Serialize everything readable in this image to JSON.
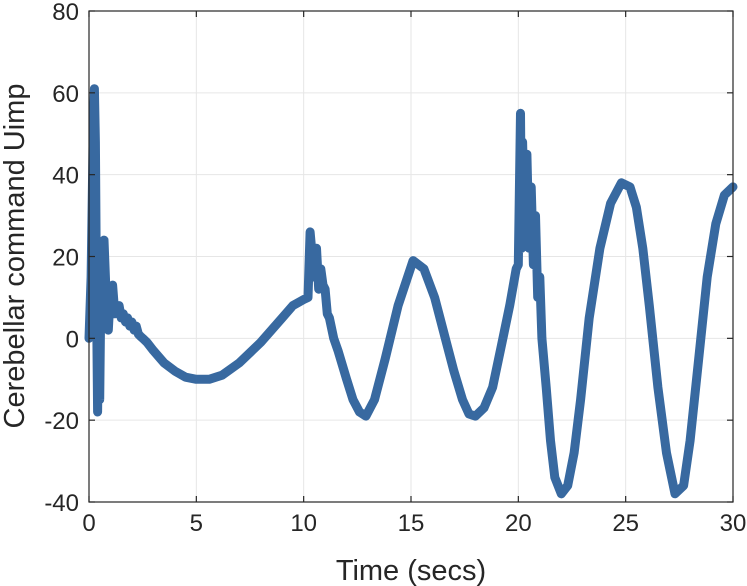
{
  "chart_data": {
    "type": "line",
    "title": "",
    "xlabel": "Time (secs)",
    "ylabel": "Cerebellar command Uimp",
    "xlim": [
      0,
      30
    ],
    "ylim": [
      -40,
      80
    ],
    "xticks": [
      0,
      5,
      10,
      15,
      20,
      25,
      30
    ],
    "yticks": [
      -40,
      -20,
      0,
      20,
      40,
      60,
      80
    ],
    "grid": true,
    "legend": "none",
    "line_color": "#3869a0",
    "series": [
      {
        "x": [
          0,
          0.1,
          0.2,
          0.25,
          0.3,
          0.35,
          0.4,
          0.45,
          0.5,
          0.55,
          0.6,
          0.7,
          0.8,
          0.9,
          1.0,
          1.1,
          1.2,
          1.3,
          1.4,
          1.5,
          1.6,
          1.7,
          1.8,
          1.9,
          2.0,
          2.1,
          2.2,
          2.3,
          2.4,
          2.5,
          2.7,
          3.0,
          3.5,
          4.0,
          4.5,
          5.0,
          5.6,
          6.2,
          7.0,
          8.0,
          9.0,
          9.5,
          10.0,
          10.2,
          10.3,
          10.4,
          10.5,
          10.6,
          10.7,
          10.8,
          10.9,
          11.0,
          11.1,
          11.2,
          11.4,
          11.6,
          12.0,
          12.3,
          12.6,
          12.9,
          13.3,
          13.8,
          14.4,
          15.1,
          15.6,
          16.1,
          16.6,
          17.0,
          17.4,
          17.7,
          18.0,
          18.4,
          18.8,
          19.2,
          19.6,
          19.9,
          20.0,
          20.1,
          20.15,
          20.2,
          20.3,
          20.4,
          20.5,
          20.6,
          20.7,
          20.8,
          20.9,
          21.0,
          21.1,
          21.3,
          21.5,
          21.7,
          22.0,
          22.3,
          22.6,
          22.9,
          23.3,
          23.8,
          24.3,
          24.8,
          25.2,
          25.5,
          25.8,
          26.1,
          26.5,
          26.9,
          27.3,
          27.7,
          28.0,
          28.4,
          28.8,
          29.2,
          29.6,
          30.0
        ],
        "y": [
          0,
          15,
          52,
          61,
          48,
          10,
          -18,
          5,
          -15,
          10,
          5,
          24,
          10,
          2,
          12,
          13,
          6,
          7,
          8,
          5,
          6,
          4,
          5,
          3,
          4,
          2,
          3,
          1,
          0.5,
          0,
          -1,
          -3,
          -6,
          -8,
          -9.5,
          -10,
          -10,
          -9,
          -6,
          -1,
          5,
          8,
          9.5,
          10,
          26,
          20,
          15,
          22,
          12,
          17,
          13,
          12,
          6,
          5,
          0,
          -3,
          -10,
          -15,
          -18,
          -19,
          -15,
          -5,
          8,
          19,
          17,
          10,
          0,
          -8,
          -15,
          -18.5,
          -19,
          -17,
          -12,
          -2,
          8,
          17,
          18,
          55,
          22,
          48,
          25,
          45,
          22,
          37,
          18,
          30,
          10,
          15,
          0,
          -12,
          -25,
          -34,
          -38,
          -36,
          -28,
          -15,
          5,
          22,
          33,
          38,
          37,
          32,
          22,
          8,
          -12,
          -28,
          -38,
          -36,
          -25,
          -5,
          15,
          28,
          35,
          37
        ]
      }
    ]
  }
}
